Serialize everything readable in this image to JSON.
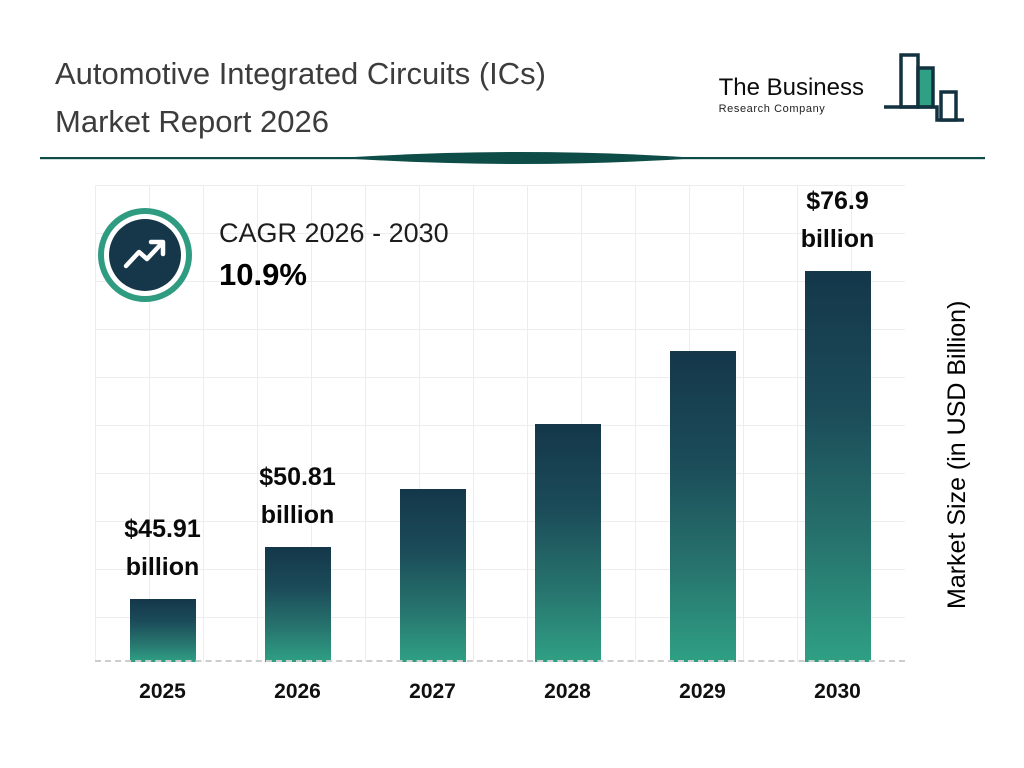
{
  "header": {
    "title_line1": "Automotive Integrated Circuits (ICs)",
    "title_line2": "Market Report 2026"
  },
  "logo": {
    "name": "The Business",
    "subname": "Research Company"
  },
  "cagr": {
    "label": "CAGR 2026 - 2030",
    "value": "10.9%"
  },
  "chart_data": {
    "type": "bar",
    "title": "Automotive Integrated Circuits (ICs) Market Report 2026",
    "categories": [
      "2025",
      "2026",
      "2027",
      "2028",
      "2029",
      "2030"
    ],
    "values": [
      45.91,
      50.81,
      56.35,
      62.49,
      69.3,
      76.9
    ],
    "data_labels": [
      {
        "line1": "$45.91",
        "line2": "billion"
      },
      {
        "line1": "$50.81",
        "line2": "billion"
      },
      null,
      null,
      null,
      {
        "line1": "$76.9",
        "line2": "billion"
      }
    ],
    "xlabel": "",
    "ylabel": "Market Size (in USD Billion)",
    "ylim": [
      40,
      80
    ],
    "grid": true,
    "legend": "none",
    "bar_gradient_top": "#14374a",
    "bar_gradient_bottom": "#2fa084"
  },
  "colors": {
    "accent_teal": "#2fa084",
    "dark_navy": "#16374a",
    "divider": "#0d4c47",
    "title_text": "#3c3c3c"
  }
}
